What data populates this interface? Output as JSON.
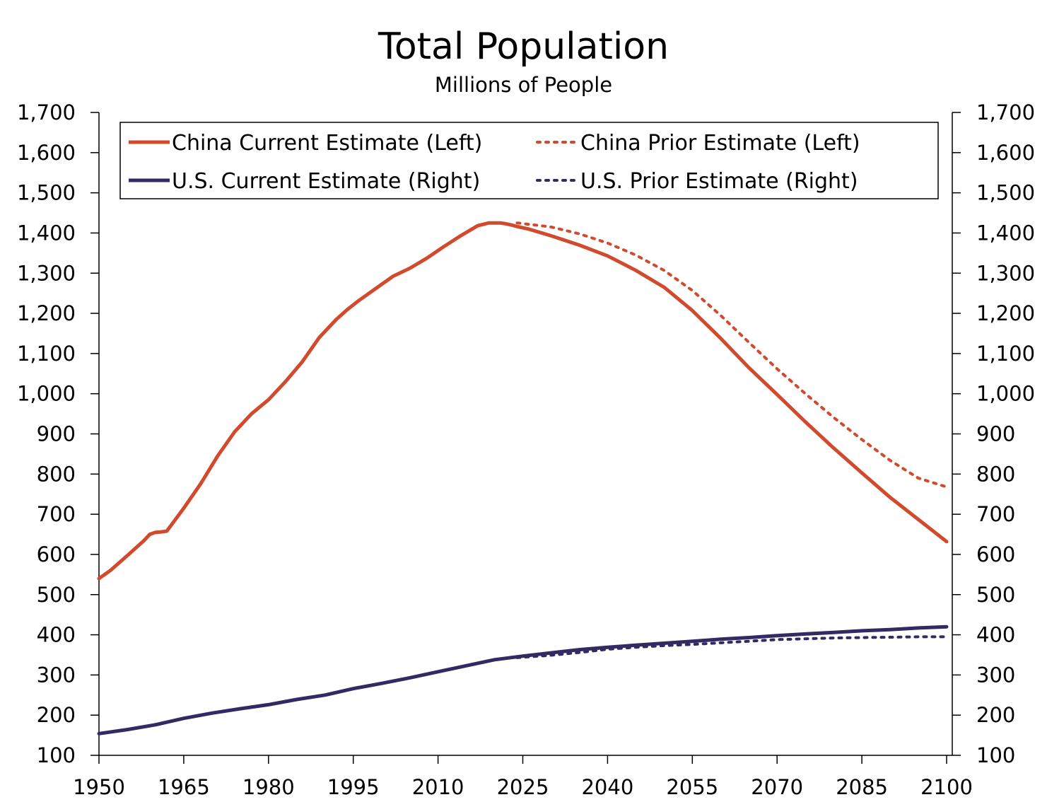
{
  "chart_data": {
    "type": "line",
    "title": "Total Population",
    "subtitle": "Millions of People",
    "xlabel": "",
    "ylabel": "",
    "xlim": [
      1950,
      2101
    ],
    "ylim": [
      100,
      1700
    ],
    "x_ticks": [
      1950,
      1965,
      1980,
      1995,
      2010,
      2025,
      2040,
      2055,
      2070,
      2085,
      2100
    ],
    "x_tick_labels": [
      "1950",
      "1965",
      "1980",
      "1995",
      "2010",
      "2025",
      "2040",
      "2055",
      "2070",
      "2085",
      "2100"
    ],
    "y_ticks": [
      100,
      200,
      300,
      400,
      500,
      600,
      700,
      800,
      900,
      1000,
      1100,
      1200,
      1300,
      1400,
      1500,
      1600,
      1700
    ],
    "y_tick_labels": [
      "100",
      "200",
      "300",
      "400",
      "500",
      "600",
      "700",
      "800",
      "900",
      "1,000",
      "1,100",
      "1,200",
      "1,300",
      "1,400",
      "1,500",
      "1,600",
      "1,700"
    ],
    "y2_tick_labels": [
      "100",
      "200",
      "300",
      "400",
      "500",
      "600",
      "700",
      "800",
      "900",
      "1,000",
      "1,100",
      "1,200",
      "1,300",
      "1,400",
      "1,500",
      "1,600",
      "1,700"
    ],
    "legend_position": "top",
    "series": [
      {
        "name": "China Current Estimate (Left)",
        "axis": "left",
        "style": "solid",
        "color": "#D24A2E",
        "x": [
          1950,
          1952,
          1955,
          1958,
          1959,
          1960,
          1961,
          1962,
          1965,
          1968,
          1971,
          1974,
          1977,
          1980,
          1983,
          1986,
          1989,
          1992,
          1994,
          1996,
          1999,
          2002,
          2005,
          2008,
          2011,
          2014,
          2017,
          2019,
          2021,
          2022,
          2023,
          2024,
          2026,
          2030,
          2035,
          2040,
          2045,
          2050,
          2055,
          2060,
          2065,
          2070,
          2075,
          2080,
          2085,
          2090,
          2095,
          2100
        ],
        "y": [
          540,
          560,
          597,
          635,
          650,
          655,
          656,
          658,
          715,
          776,
          845,
          905,
          950,
          985,
          1030,
          1080,
          1140,
          1185,
          1210,
          1232,
          1262,
          1292,
          1312,
          1337,
          1366,
          1393,
          1418,
          1425,
          1425,
          1423,
          1420,
          1416,
          1410,
          1393,
          1370,
          1343,
          1307,
          1265,
          1207,
          1138,
          1065,
          998,
          930,
          865,
          803,
          742,
          687,
          632
        ]
      },
      {
        "name": "China Prior Estimate (Left)",
        "axis": "left",
        "style": "dotted",
        "color": "#D24A2E",
        "x": [
          2024,
          2030,
          2035,
          2040,
          2045,
          2050,
          2055,
          2060,
          2065,
          2070,
          2075,
          2080,
          2085,
          2090,
          2095,
          2100
        ],
        "y": [
          1425,
          1415,
          1398,
          1375,
          1345,
          1307,
          1257,
          1195,
          1128,
          1062,
          1000,
          941,
          886,
          834,
          790,
          768
        ]
      },
      {
        "name": "U.S. Current Estimate (Right)",
        "axis": "right",
        "style": "solid",
        "color": "#332A63",
        "x": [
          1950,
          1955,
          1960,
          1965,
          1970,
          1975,
          1980,
          1985,
          1990,
          1995,
          2000,
          2005,
          2010,
          2015,
          2020,
          2025,
          2030,
          2035,
          2040,
          2045,
          2050,
          2055,
          2060,
          2065,
          2070,
          2075,
          2080,
          2085,
          2090,
          2095,
          2100
        ],
        "y": [
          154,
          164,
          176,
          192,
          205,
          216,
          226,
          239,
          250,
          266,
          279,
          293,
          308,
          323,
          338,
          347,
          355,
          363,
          369,
          374,
          379,
          384,
          389,
          393,
          398,
          402,
          406,
          410,
          413,
          417,
          420
        ]
      },
      {
        "name": "U.S. Prior Estimate (Right)",
        "axis": "right",
        "style": "dotted",
        "color": "#332A63",
        "x": [
          2024,
          2030,
          2035,
          2040,
          2045,
          2050,
          2055,
          2060,
          2065,
          2070,
          2075,
          2080,
          2085,
          2090,
          2095,
          2100
        ],
        "y": [
          343,
          349,
          356,
          364,
          369,
          373,
          376,
          380,
          384,
          388,
          390,
          392,
          393,
          394,
          395,
          395
        ]
      }
    ]
  }
}
